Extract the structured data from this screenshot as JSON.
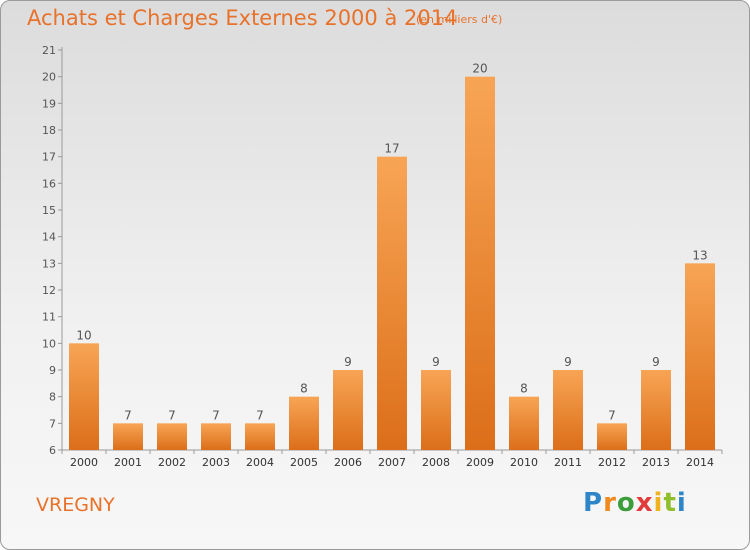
{
  "header": {
    "title": "Achats et Charges Externes 2000 à 2014",
    "subtitle": "(en milliers d'€)"
  },
  "footer": {
    "commune": "VREGNY",
    "brand": {
      "letters": [
        "P",
        "r",
        "o",
        "x",
        "i",
        "t",
        "i"
      ],
      "colors": [
        "#2e86c8",
        "#f08a1e",
        "#3b9e3b",
        "#e23b3b",
        "#f0b21e",
        "#8fbf2a",
        "#2e86c8"
      ]
    }
  },
  "chart_data": {
    "type": "bar",
    "title": "Achats et Charges Externes 2000 à 2014",
    "subtitle": "(en milliers d'€)",
    "categories": [
      "2000",
      "2001",
      "2002",
      "2003",
      "2004",
      "2005",
      "2006",
      "2007",
      "2008",
      "2009",
      "2010",
      "2011",
      "2012",
      "2013",
      "2014"
    ],
    "values": [
      10,
      7,
      7,
      7,
      7,
      8,
      9,
      17,
      9,
      20,
      8,
      9,
      7,
      9,
      13
    ],
    "data_labels": [
      "10",
      "7",
      "7",
      "7",
      "7",
      "8",
      "9",
      "17",
      "9",
      "20",
      "8",
      "9",
      "7",
      "9",
      "13"
    ],
    "ylim": [
      6,
      21
    ],
    "yticks": [
      6,
      7,
      8,
      9,
      10,
      11,
      12,
      13,
      14,
      15,
      16,
      17,
      18,
      19,
      20,
      21
    ],
    "xlabel": "",
    "ylabel": "",
    "grid": false,
    "colors": {
      "bar_light": "#f7a555",
      "bar_dark": "#dc6e19",
      "axis": "#9a9a9a",
      "label": "#555555"
    }
  }
}
